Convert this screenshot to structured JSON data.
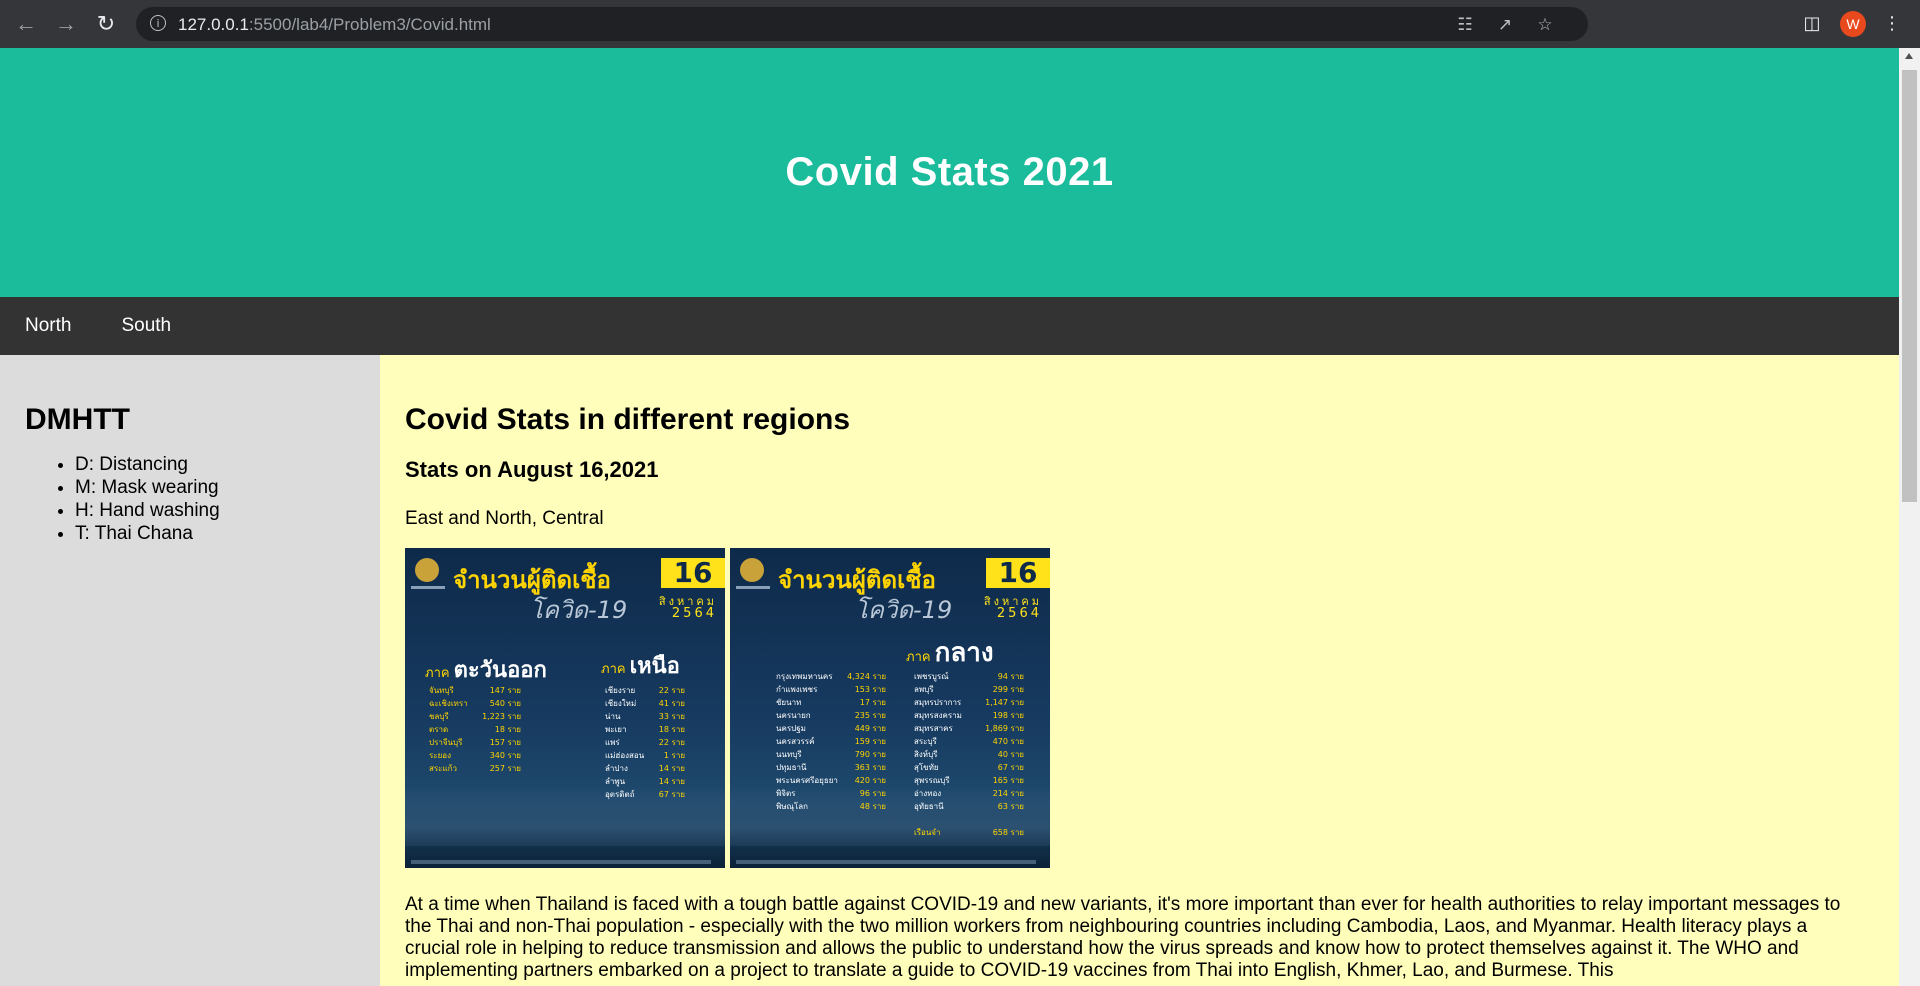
{
  "browser": {
    "url_host": "127.0.0.1",
    "url_rest": ":5500/lab4/Problem3/Covid.html",
    "info_icon": "info-icon",
    "avatar_letter": "W"
  },
  "header": {
    "title": "Covid Stats 2021"
  },
  "navbar": {
    "items": [
      "North",
      "South"
    ]
  },
  "sidebar": {
    "title": "DMHTT",
    "items": [
      "D: Distancing",
      "M: Mask wearing",
      "H: Hand washing",
      "T: Thai Chana"
    ]
  },
  "main": {
    "title": "Covid Stats in different regions",
    "subtitle": "Stats on August 16,2021",
    "regions_text": "East and North, Central",
    "posters": [
      {
        "title": "จำนวนผู้ติดเชื้อ",
        "subtitle": "โควิด-19",
        "day": "16",
        "month": "สิงหาคม",
        "year": "2564",
        "region_left_kw": "ภาค",
        "region_left": "ตะวันออก",
        "region_right_kw": "ภาค",
        "region_right": "เหนือ",
        "left_rows": [
          [
            "จันทบุรี",
            "147 ราย"
          ],
          [
            "ฉะเชิงเทรา",
            "540 ราย"
          ],
          [
            "ชลบุรี",
            "1,223 ราย"
          ],
          [
            "ตราด",
            "18 ราย"
          ],
          [
            "ปราจีนบุรี",
            "157 ราย"
          ],
          [
            "ระยอง",
            "340 ราย"
          ],
          [
            "สระแก้ว",
            "257 ราย"
          ]
        ],
        "right_rows": [
          [
            "เชียงราย",
            "22 ราย"
          ],
          [
            "เชียงใหม่",
            "41 ราย"
          ],
          [
            "น่าน",
            "33 ราย"
          ],
          [
            "พะเยา",
            "18 ราย"
          ],
          [
            "แพร่",
            "22 ราย"
          ],
          [
            "แม่ฮ่องสอน",
            "1 ราย"
          ],
          [
            "ลำปาง",
            "14 ราย"
          ],
          [
            "ลำพูน",
            "14 ราย"
          ],
          [
            "อุตรดิตถ์",
            "67 ราย"
          ]
        ]
      },
      {
        "title": "จำนวนผู้ติดเชื้อ",
        "subtitle": "โควิด-19",
        "day": "16",
        "month": "สิงหาคม",
        "year": "2564",
        "region_kw": "ภาค",
        "region": "กลาง",
        "left_rows": [
          [
            "กรุงเทพมหานคร",
            "4,324 ราย"
          ],
          [
            "กำแพงเพชร",
            "153 ราย"
          ],
          [
            "ชัยนาท",
            "17 ราย"
          ],
          [
            "นครนายก",
            "235 ราย"
          ],
          [
            "นครปฐม",
            "449 ราย"
          ],
          [
            "นครสวรรค์",
            "159 ราย"
          ],
          [
            "นนทบุรี",
            "790 ราย"
          ],
          [
            "ปทุมธานี",
            "363 ราย"
          ],
          [
            "พระนครศรีอยุธยา",
            "420 ราย"
          ],
          [
            "พิจิตร",
            "96 ราย"
          ],
          [
            "พิษณุโลก",
            "48 ราย"
          ]
        ],
        "right_rows": [
          [
            "เพชรบูรณ์",
            "94 ราย"
          ],
          [
            "ลพบุรี",
            "299 ราย"
          ],
          [
            "สมุทรปราการ",
            "1,147 ราย"
          ],
          [
            "สมุทรสงคราม",
            "198 ราย"
          ],
          [
            "สมุทรสาคร",
            "1,869 ราย"
          ],
          [
            "สระบุรี",
            "470 ราย"
          ],
          [
            "สิงห์บุรี",
            "40 ราย"
          ],
          [
            "สุโขทัย",
            "67 ราย"
          ],
          [
            "สุพรรณบุรี",
            "165 ราย"
          ],
          [
            "อ่างทอง",
            "214 ราย"
          ],
          [
            "อุทัยธานี",
            "63 ราย"
          ]
        ],
        "extra": [
          "เรือนจำ",
          "658 ราย"
        ]
      }
    ],
    "body": "At a time when Thailand is faced with a tough battle against COVID-19 and new variants, it's more important than ever for health authorities to relay important messages to the Thai and non-Thai population - especially with the two million workers from neighbouring countries including Cambodia, Laos, and Myanmar. Health literacy plays a crucial role in helping to reduce transmission and allows the public to understand how the virus spreads and know how to protect themselves against it. The WHO and implementing partners embarked on a project to translate a guide to COVID-19 vaccines from Thai into English, Khmer, Lao, and Burmese. This"
  }
}
